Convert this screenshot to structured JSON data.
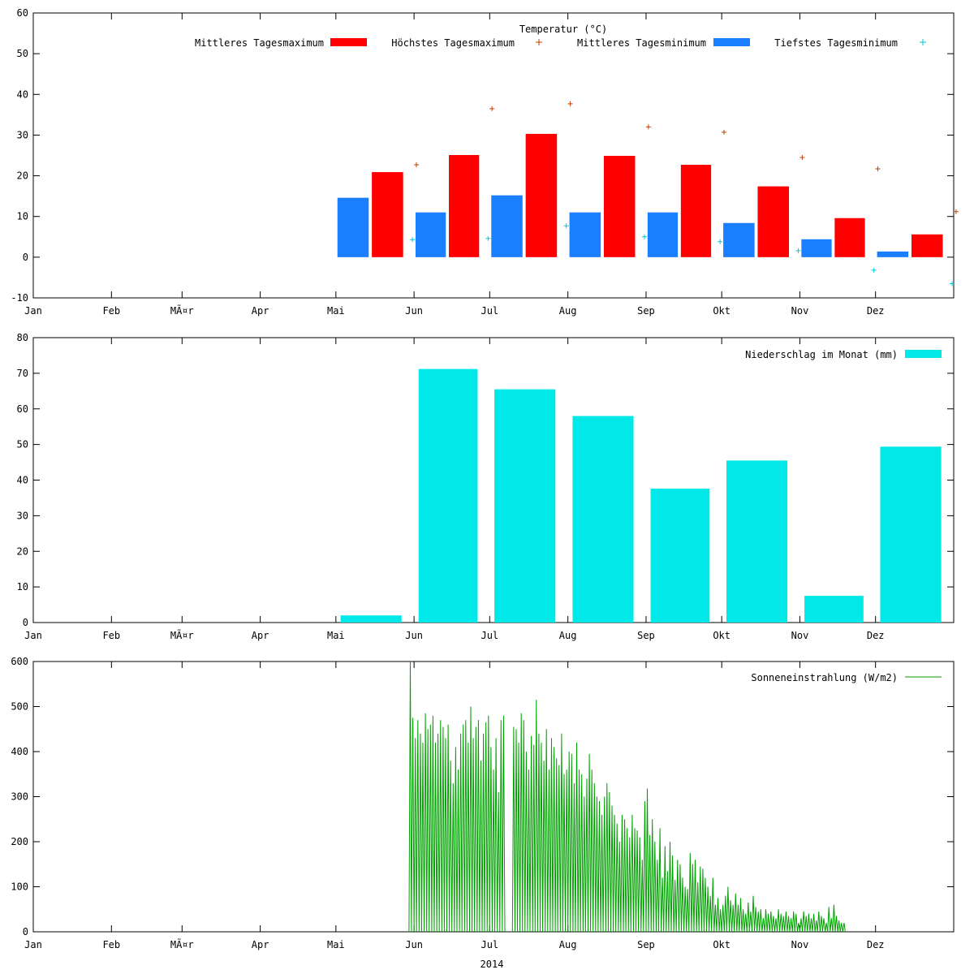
{
  "months": [
    "Jan",
    "Feb",
    "MÃ¤r",
    "Apr",
    "Mai",
    "Jun",
    "Jul",
    "Aug",
    "Sep",
    "Okt",
    "Nov",
    "Dez"
  ],
  "year_label": "2014",
  "colors": {
    "mean_max": "#ff0000",
    "mean_min": "#1a7fff",
    "highest_max": "#c04000",
    "lowest_min": "#00c8d8",
    "precip": "#00e8e8",
    "solar": "#00a000"
  },
  "chart_data": [
    {
      "type": "bar",
      "title": "Temperatur (°C)",
      "ylim": [
        -10,
        60
      ],
      "yticks": [
        -10,
        0,
        10,
        20,
        30,
        40,
        50,
        60
      ],
      "categories": [
        "Mai",
        "Jun",
        "Jul",
        "Aug",
        "Sep",
        "Okt",
        "Nov",
        "Dez"
      ],
      "series": [
        {
          "name": "Mittleres Tagesmaximum",
          "values": [
            20.9,
            25.1,
            30.3,
            24.9,
            22.7,
            17.4,
            9.6,
            5.6
          ]
        },
        {
          "name": "Höchstes Tagesmaximum",
          "values": [
            22.7,
            36.5,
            37.7,
            32.0,
            30.7,
            24.5,
            21.7,
            11.2
          ]
        },
        {
          "name": "Mittleres Tagesminimum",
          "values": [
            14.6,
            11.0,
            15.2,
            11.0,
            11.0,
            8.4,
            4.4,
            1.4
          ]
        },
        {
          "name": "Tiefstes Tagesminimum",
          "values": [
            4.3,
            4.6,
            7.7,
            5.0,
            3.8,
            1.6,
            -3.2,
            -6.5
          ]
        }
      ]
    },
    {
      "type": "bar",
      "ylim": [
        0,
        80
      ],
      "yticks": [
        0,
        10,
        20,
        30,
        40,
        50,
        60,
        70,
        80
      ],
      "categories": [
        "Mai",
        "Jun",
        "Jul",
        "Aug",
        "Sep",
        "Okt",
        "Nov",
        "Dez"
      ],
      "series": [
        {
          "name": "Niederschlag im Monat (mm)",
          "values": [
            2.0,
            71.2,
            65.5,
            58.0,
            37.6,
            45.5,
            7.5,
            49.4
          ]
        }
      ]
    },
    {
      "type": "line",
      "ylim": [
        0,
        600
      ],
      "yticks": [
        0,
        100,
        200,
        300,
        400,
        500,
        600
      ],
      "series": [
        {
          "name": "Sonneneinstrahlung (W/m2)",
          "start_date": "2014-05-30",
          "daily_peaks": [
            600,
            475,
            430,
            470,
            440,
            420,
            485,
            450,
            460,
            480,
            420,
            440,
            470,
            455,
            430,
            460,
            380,
            330,
            410,
            360,
            440,
            460,
            470,
            420,
            500,
            430,
            455,
            470,
            380,
            440,
            465,
            480,
            410,
            360,
            430,
            310,
            470,
            480,
            0,
            0,
            0,
            455,
            450,
            420,
            485,
            470,
            400,
            360,
            435,
            415,
            515,
            440,
            420,
            380,
            450,
            360,
            430,
            410,
            385,
            370,
            440,
            350,
            360,
            400,
            395,
            330,
            420,
            360,
            350,
            300,
            340,
            395,
            360,
            330,
            300,
            290,
            260,
            300,
            330,
            310,
            280,
            260,
            240,
            200,
            260,
            250,
            230,
            210,
            260,
            230,
            225,
            210,
            160,
            290,
            318,
            215,
            250,
            200,
            160,
            230,
            120,
            190,
            135,
            200,
            170,
            115,
            160,
            150,
            120,
            100,
            95,
            175,
            150,
            160,
            110,
            145,
            140,
            120,
            100,
            80,
            120,
            60,
            75,
            50,
            60,
            80,
            100,
            70,
            60,
            85,
            60,
            75,
            50,
            40,
            65,
            45,
            80,
            55,
            45,
            50,
            30,
            50,
            40,
            45,
            35,
            30,
            50,
            40,
            35,
            45,
            35,
            30,
            45,
            40,
            20,
            30,
            45,
            35,
            40,
            30,
            40,
            25,
            45,
            35,
            30,
            20,
            55,
            30,
            60,
            35,
            25,
            20,
            20
          ]
        }
      ]
    }
  ]
}
